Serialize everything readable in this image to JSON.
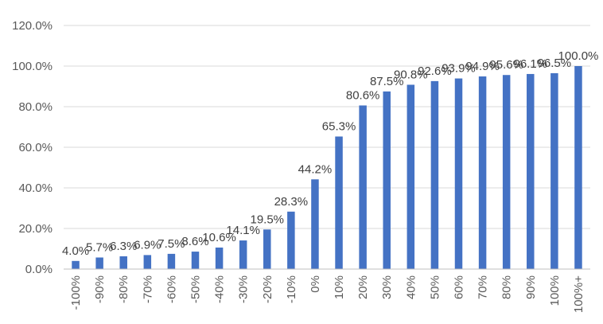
{
  "chart_data": {
    "type": "bar",
    "categories": [
      "-100%",
      "-90%",
      "-80%",
      "-70%",
      "-60%",
      "-50%",
      "-40%",
      "-30%",
      "-20%",
      "-10%",
      "0%",
      "10%",
      "20%",
      "30%",
      "40%",
      "50%",
      "60%",
      "70%",
      "80%",
      "90%",
      "100%",
      "100%+"
    ],
    "values": [
      4.0,
      5.7,
      6.3,
      6.9,
      7.5,
      8.6,
      10.6,
      14.1,
      19.5,
      28.3,
      44.2,
      65.3,
      80.6,
      87.5,
      90.8,
      92.6,
      93.9,
      94.9,
      95.6,
      96.1,
      96.5,
      100.0
    ],
    "data_labels": [
      "4.0%",
      "5.7%",
      "6.3%",
      "6.9%",
      "7.5%",
      "8.6%",
      "10.6%",
      "14.1%",
      "19.5%",
      "28.3%",
      "44.2%",
      "65.3%",
      "80.6%",
      "87.5%",
      "90.8%",
      "92.6%",
      "93.9%",
      "94.9%",
      "95.6%",
      "96.1%",
      "96.5%",
      "100.0%"
    ],
    "y_ticks": [
      "0.0%",
      "20.0%",
      "40.0%",
      "60.0%",
      "80.0%",
      "100.0%",
      "120.0%"
    ],
    "ylim": [
      0,
      120
    ],
    "title": "",
    "xlabel": "",
    "ylabel": "",
    "grid": true,
    "legend": "none",
    "colors": {
      "bar": "#4472C4",
      "grid": "#d9d9d9",
      "axis": "#bfbfbf"
    }
  }
}
